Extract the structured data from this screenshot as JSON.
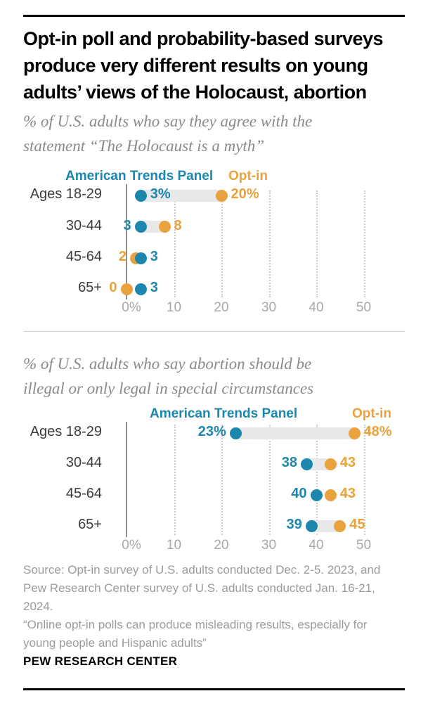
{
  "page": {
    "title": "Opt-in poll and probability-based surveys\nproduce very different results on young\nadults’ views of the Holocaust, abortion",
    "source": "Source: Opt-in survey of U.S. adults conducted Dec. 2-5. 2023, and\nPew Research Center survey of U.S. adults conducted Jan. 16-21,\n2024.",
    "quote": "“Online opt-in polls can produce misleading results, especially for\nyoung people and Hispanic adults”",
    "wordmark": "PEW RESEARCH CENTER"
  },
  "colors": {
    "atp_blue": "#1b87ad",
    "optin_orange": "#eaa23c",
    "connector_gray": "#e8e8e8",
    "axis_gray": "#8f8f8f",
    "tick_label_gray": "#a8a8a8"
  },
  "chart_data": [
    {
      "type": "scatter",
      "title": "% of U.S. adults who say they agree with the\nstatement “The Holocaust is a myth”",
      "categories": [
        "Ages 18-29",
        "30-44",
        "45-64",
        "65+"
      ],
      "x_ticks": [
        "0%",
        "10",
        "20",
        "30",
        "40",
        "50"
      ],
      "xlim": [
        0,
        55
      ],
      "grid": "vertical-dotted",
      "legend_position": "top",
      "series": [
        {
          "name": "American Trends Panel",
          "color": "atp_blue",
          "values": [
            3,
            3,
            3,
            3
          ],
          "point_labels": [
            "3%",
            "3",
            "3",
            "3"
          ],
          "label_sides": [
            "right",
            "left",
            "right",
            "right"
          ]
        },
        {
          "name": "Opt-in",
          "color": "optin_orange",
          "values": [
            20,
            8,
            2,
            0
          ],
          "point_labels": [
            "20%",
            "8",
            "2",
            "0"
          ],
          "label_sides": [
            "right",
            "right",
            "left",
            "left"
          ]
        }
      ],
      "connectors": [
        true,
        true,
        false,
        false
      ]
    },
    {
      "type": "scatter",
      "title": "% of U.S. adults who say abortion should be\nillegal or only legal in special circumstances",
      "categories": [
        "Ages 18-29",
        "30-44",
        "45-64",
        "65+"
      ],
      "x_ticks": [
        "0%",
        "10",
        "20",
        "30",
        "40",
        "50"
      ],
      "xlim": [
        0,
        55
      ],
      "grid": "vertical-dotted",
      "legend_position": "top",
      "series": [
        {
          "name": "American Trends Panel",
          "color": "atp_blue",
          "values": [
            23,
            38,
            40,
            39
          ],
          "point_labels": [
            "23%",
            "38",
            "40",
            "39"
          ],
          "label_sides": [
            "left",
            "left",
            "left",
            "left"
          ]
        },
        {
          "name": "Opt-in",
          "color": "optin_orange",
          "values": [
            48,
            43,
            43,
            45
          ],
          "point_labels": [
            "48%",
            "43",
            "43",
            "45"
          ],
          "label_sides": [
            "right",
            "right",
            "right",
            "right"
          ]
        }
      ],
      "connectors": [
        true,
        true,
        false,
        true
      ]
    }
  ]
}
